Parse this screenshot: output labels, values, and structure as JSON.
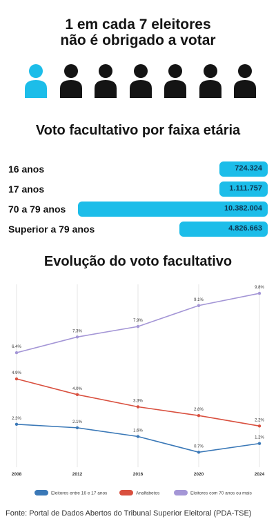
{
  "header": {
    "line1": "1 em cada 7 eleitores",
    "line2": "não é obrigado a votar"
  },
  "pictogram": {
    "total": 7,
    "highlighted": 1,
    "highlight_color": "#1cbde9",
    "base_color": "#141414",
    "icon": "person-icon"
  },
  "age_section": {
    "title": "Voto facultativo por faixa etária"
  },
  "age_bars": [
    {
      "label": "16 anos",
      "value": 724324,
      "value_text": "724.324"
    },
    {
      "label": "17 anos",
      "value": 1111757,
      "value_text": "1.111.757"
    },
    {
      "label": "70 a 79 anos",
      "value": 10382004,
      "value_text": "10.382.004"
    },
    {
      "label": "Superior a 79 anos",
      "value": 4826663,
      "value_text": "4.826.663"
    }
  ],
  "evolution_section": {
    "title": "Evolução do voto facultativo"
  },
  "chart_data": {
    "type": "line",
    "title": "Evolução do voto facultativo",
    "x": [
      2008,
      2012,
      2016,
      2020,
      2024
    ],
    "x_labels": [
      "2008",
      "2012",
      "2016",
      "2020",
      "2024"
    ],
    "series": [
      {
        "name": "Eleitores entre 16 e 17 anos",
        "color": "#3a78b7",
        "values": [
          2.3,
          2.1,
          1.6,
          0.7,
          1.2
        ],
        "labels": [
          "2.3%",
          "2.1%",
          "1.6%",
          "0.7%",
          "1.2%"
        ]
      },
      {
        "name": "Analfabetos",
        "color": "#d9503f",
        "values": [
          4.9,
          4.0,
          3.3,
          2.8,
          2.2
        ],
        "labels": [
          "4.9%",
          "4.0%",
          "3.3%",
          "2.8%",
          "2.2%"
        ]
      },
      {
        "name": "Eleitores com 70 anos ou mais",
        "color": "#a496d6",
        "values": [
          6.4,
          7.3,
          7.9,
          9.1,
          9.8
        ],
        "labels": [
          "6.4%",
          "7.3%",
          "7.9%",
          "9.1%",
          "9.8%"
        ]
      }
    ],
    "ylim": [
      0,
      10
    ],
    "grid": "vertical",
    "legend_placement": "bottom"
  },
  "footer": {
    "source": "Fonte: Portal de Dados Abertos do Tribunal Superior Eleitoral (PDA-TSE)"
  }
}
